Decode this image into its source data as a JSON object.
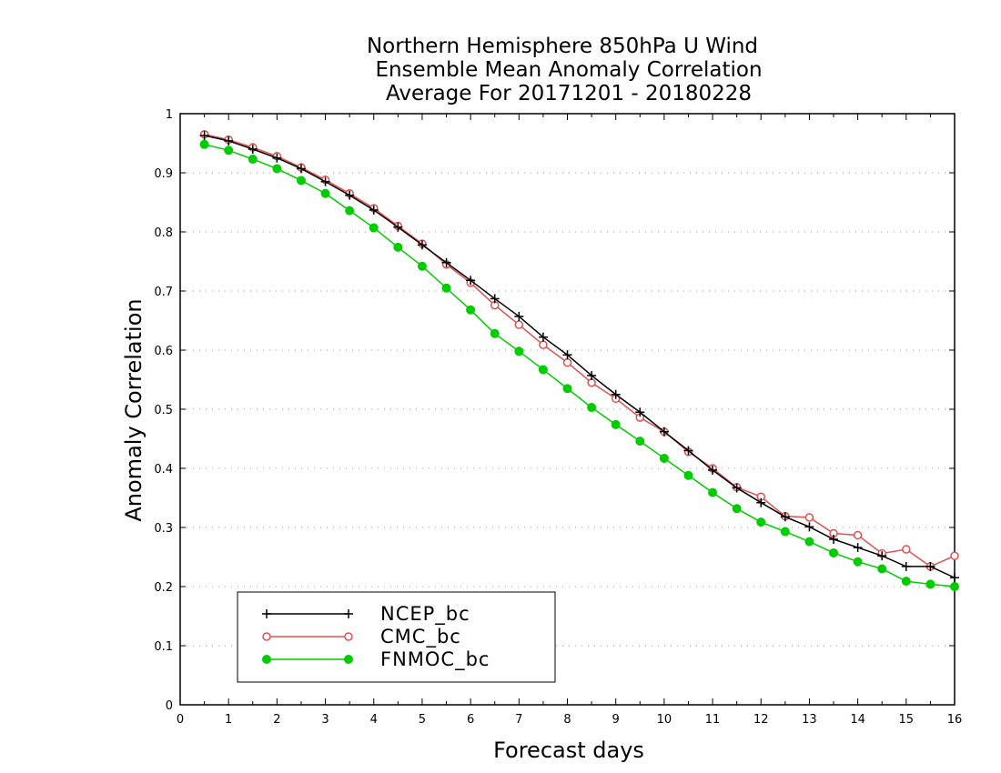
{
  "chart_data": {
    "type": "line",
    "title": [
      "Northern Hemisphere 850hPa U Wind",
      "Ensemble Mean Anomaly Correlation",
      "Average For 20171201 - 20180228"
    ],
    "xlabel": "Forecast days",
    "ylabel": "Anomaly Correlation",
    "xlim": [
      0,
      16
    ],
    "ylim": [
      0,
      1
    ],
    "x_ticks": [
      "0",
      "1",
      "2",
      "3",
      "4",
      "5",
      "6",
      "7",
      "8",
      "9",
      "10",
      "11",
      "12",
      "13",
      "14",
      "15",
      "16"
    ],
    "y_ticks": [
      "0",
      "0.1",
      "0.2",
      "0.3",
      "0.4",
      "0.5",
      "0.6",
      "0.7",
      "0.8",
      "0.9",
      "1"
    ],
    "grid": "horizontal dotted",
    "legend_position": "bottom-left",
    "x": [
      0.5,
      1,
      1.5,
      2,
      2.5,
      3,
      3.5,
      4,
      4.5,
      5,
      5.5,
      6,
      6.5,
      7,
      7.5,
      8,
      8.5,
      9,
      9.5,
      10,
      10.5,
      11,
      11.5,
      12,
      12.5,
      13,
      13.5,
      14,
      14.5,
      15,
      15.5,
      16
    ],
    "series": [
      {
        "name": "NCEP_bc",
        "color": "#000000",
        "marker": "plus",
        "values": [
          0.963,
          0.954,
          0.94,
          0.925,
          0.907,
          0.885,
          0.862,
          0.837,
          0.808,
          0.778,
          0.748,
          0.718,
          0.687,
          0.657,
          0.622,
          0.592,
          0.557,
          0.525,
          0.495,
          0.462,
          0.43,
          0.397,
          0.367,
          0.342,
          0.318,
          0.301,
          0.28,
          0.266,
          0.252,
          0.234,
          0.234,
          0.215
        ]
      },
      {
        "name": "CMC_bc",
        "color": "#e05050",
        "marker": "open-circle",
        "values": [
          0.965,
          0.956,
          0.943,
          0.928,
          0.909,
          0.888,
          0.865,
          0.84,
          0.81,
          0.78,
          0.745,
          0.714,
          0.676,
          0.643,
          0.609,
          0.579,
          0.545,
          0.518,
          0.486,
          0.462,
          0.428,
          0.4,
          0.368,
          0.352,
          0.319,
          0.317,
          0.29,
          0.287,
          0.256,
          0.263,
          0.234,
          0.252
        ]
      },
      {
        "name": "FNMOC_bc",
        "color": "#00cc00",
        "marker": "filled-circle",
        "values": [
          0.948,
          0.938,
          0.923,
          0.907,
          0.887,
          0.865,
          0.836,
          0.807,
          0.774,
          0.742,
          0.705,
          0.668,
          0.628,
          0.598,
          0.567,
          0.535,
          0.503,
          0.474,
          0.446,
          0.417,
          0.388,
          0.359,
          0.332,
          0.309,
          0.293,
          0.276,
          0.257,
          0.242,
          0.23,
          0.209,
          0.204,
          0.2
        ]
      }
    ]
  }
}
